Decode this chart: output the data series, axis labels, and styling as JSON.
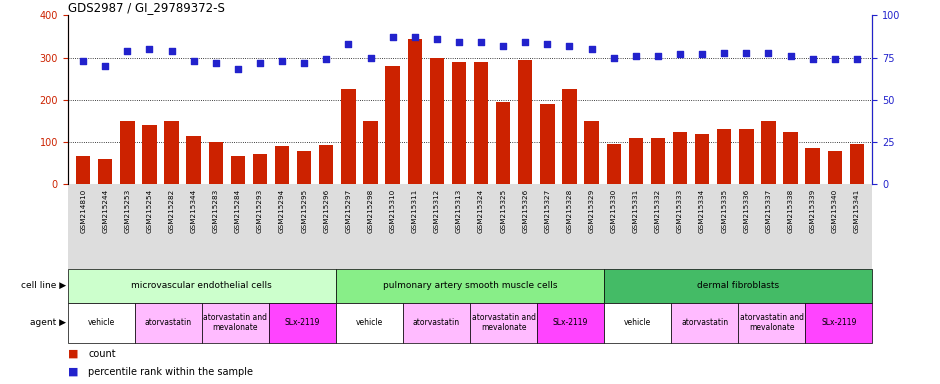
{
  "title": "GDS2987 / GI_29789372-S",
  "samples": [
    "GSM214810",
    "GSM215244",
    "GSM215253",
    "GSM215254",
    "GSM215282",
    "GSM215344",
    "GSM215283",
    "GSM215284",
    "GSM215293",
    "GSM215294",
    "GSM215295",
    "GSM215296",
    "GSM215297",
    "GSM215298",
    "GSM215310",
    "GSM215311",
    "GSM215312",
    "GSM215313",
    "GSM215324",
    "GSM215325",
    "GSM215326",
    "GSM215327",
    "GSM215328",
    "GSM215329",
    "GSM215330",
    "GSM215331",
    "GSM215332",
    "GSM215333",
    "GSM215334",
    "GSM215335",
    "GSM215336",
    "GSM215337",
    "GSM215338",
    "GSM215339",
    "GSM215340",
    "GSM215341"
  ],
  "counts": [
    68,
    60,
    150,
    140,
    150,
    115,
    100,
    68,
    72,
    90,
    78,
    92,
    225,
    150,
    280,
    345,
    300,
    290,
    290,
    195,
    295,
    190,
    225,
    150,
    95,
    110,
    110,
    125,
    120,
    130,
    130,
    150,
    125,
    85,
    80,
    95
  ],
  "percentiles": [
    73,
    70,
    79,
    80,
    79,
    73,
    72,
    68,
    72,
    73,
    72,
    74,
    83,
    75,
    87,
    87,
    86,
    84,
    84,
    82,
    84,
    83,
    82,
    80,
    75,
    76,
    76,
    77,
    77,
    78,
    78,
    78,
    76,
    74,
    74,
    74
  ],
  "bar_color": "#cc2200",
  "dot_color": "#2222cc",
  "ylim_left": [
    0,
    400
  ],
  "ylim_right": [
    0,
    100
  ],
  "yticks_left": [
    0,
    100,
    200,
    300,
    400
  ],
  "yticks_right": [
    0,
    25,
    50,
    75,
    100
  ],
  "grid_values": [
    100,
    200,
    300
  ],
  "xtick_bg": "#dddddd",
  "cell_line_groups": [
    {
      "label": "microvascular endothelial cells",
      "start": 0,
      "end": 12,
      "color": "#ccffcc"
    },
    {
      "label": "pulmonary artery smooth muscle cells",
      "start": 12,
      "end": 24,
      "color": "#88ee88"
    },
    {
      "label": "dermal fibroblasts",
      "start": 24,
      "end": 36,
      "color": "#44bb66"
    }
  ],
  "agent_groups": [
    {
      "label": "vehicle",
      "start": 0,
      "end": 3,
      "color": "#ffffff"
    },
    {
      "label": "atorvastatin",
      "start": 3,
      "end": 6,
      "color": "#ffbbff"
    },
    {
      "label": "atorvastatin and\nmevalonate",
      "start": 6,
      "end": 9,
      "color": "#ffbbff"
    },
    {
      "label": "SLx-2119",
      "start": 9,
      "end": 12,
      "color": "#ff44ff"
    },
    {
      "label": "vehicle",
      "start": 12,
      "end": 15,
      "color": "#ffffff"
    },
    {
      "label": "atorvastatin",
      "start": 15,
      "end": 18,
      "color": "#ffbbff"
    },
    {
      "label": "atorvastatin and\nmevalonate",
      "start": 18,
      "end": 21,
      "color": "#ffbbff"
    },
    {
      "label": "SLx-2119",
      "start": 21,
      "end": 24,
      "color": "#ff44ff"
    },
    {
      "label": "vehicle",
      "start": 24,
      "end": 27,
      "color": "#ffffff"
    },
    {
      "label": "atorvastatin",
      "start": 27,
      "end": 30,
      "color": "#ffbbff"
    },
    {
      "label": "atorvastatin and\nmevalonate",
      "start": 30,
      "end": 33,
      "color": "#ffbbff"
    },
    {
      "label": "SLx-2119",
      "start": 33,
      "end": 36,
      "color": "#ff44ff"
    }
  ]
}
